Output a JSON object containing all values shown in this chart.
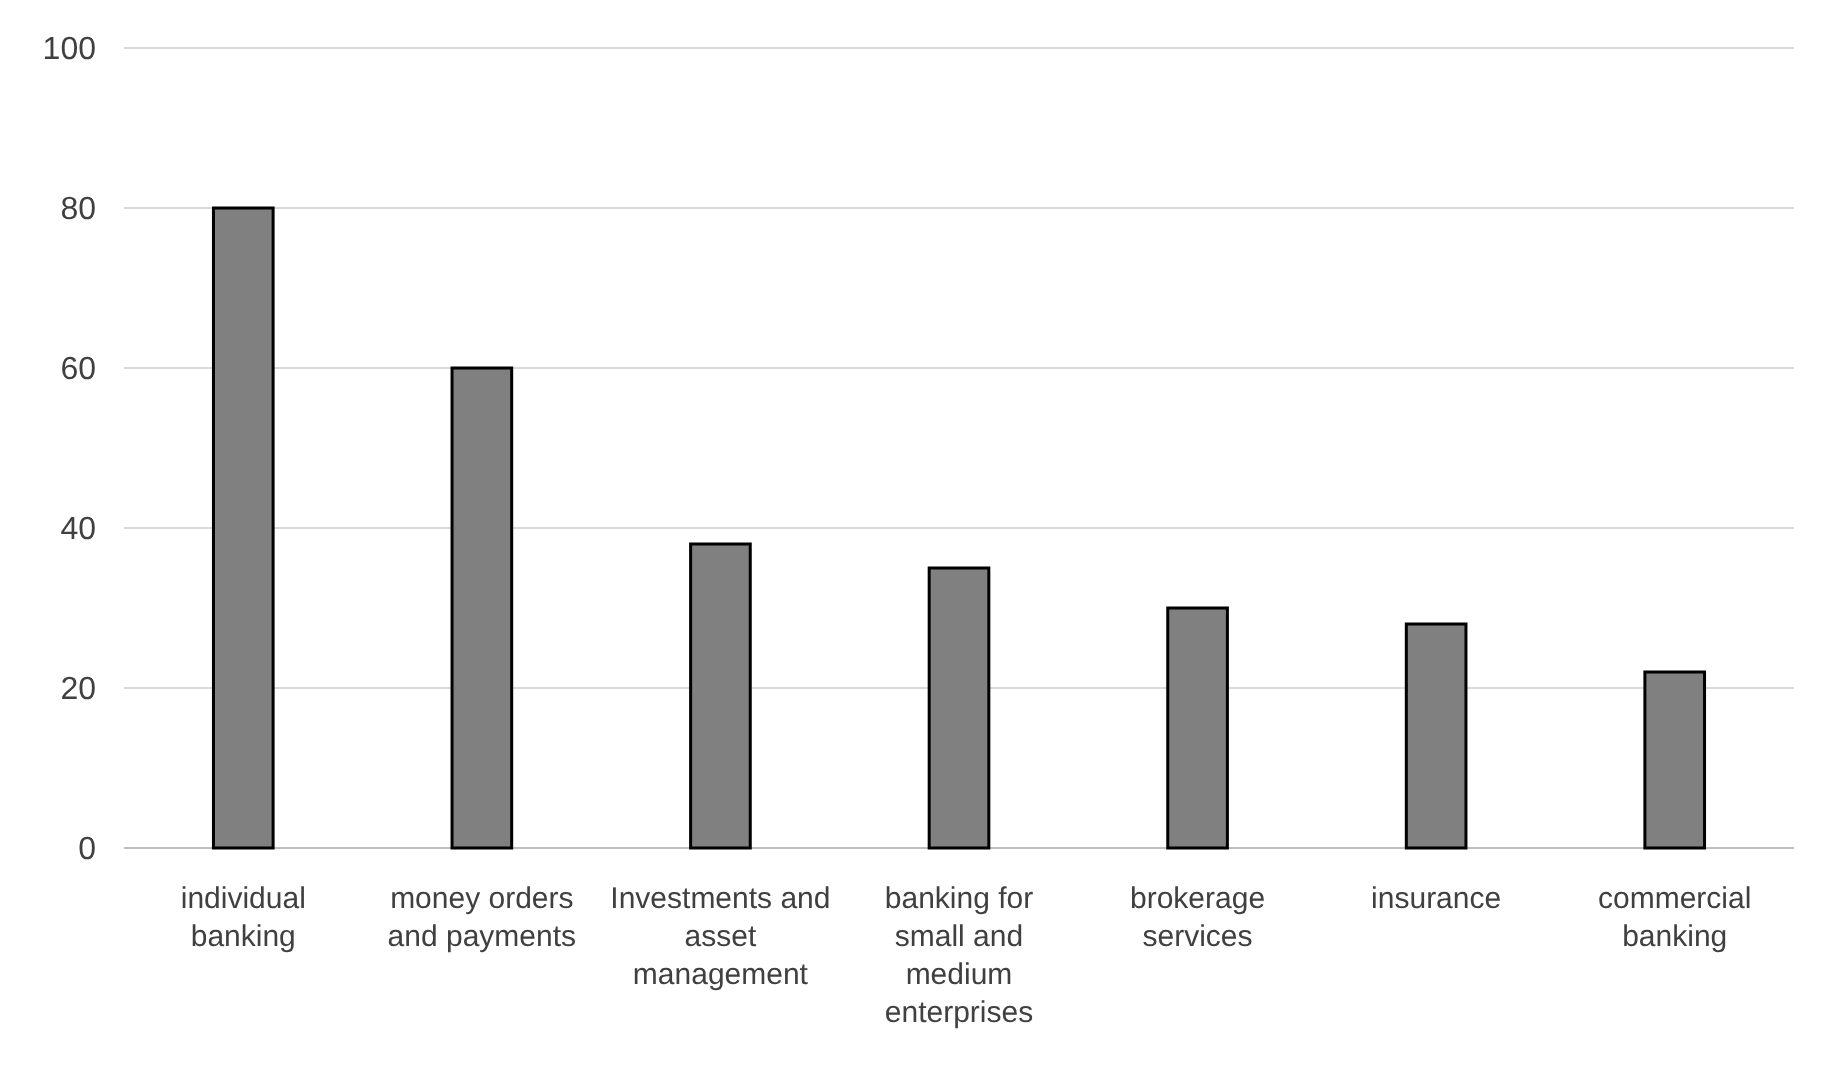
{
  "chart_data": {
    "type": "bar",
    "categories": [
      "individual banking",
      "money orders and payments",
      "Investments and asset management",
      "banking for small and medium enterprises",
      "brokerage services",
      "insurance",
      "commercial banking"
    ],
    "values": [
      80,
      60,
      38,
      35,
      30,
      28,
      22
    ],
    "color": "#808080",
    "ylim": [
      0,
      100
    ],
    "yticks": [
      0,
      20,
      40,
      60,
      80,
      100
    ],
    "grid": "y"
  }
}
